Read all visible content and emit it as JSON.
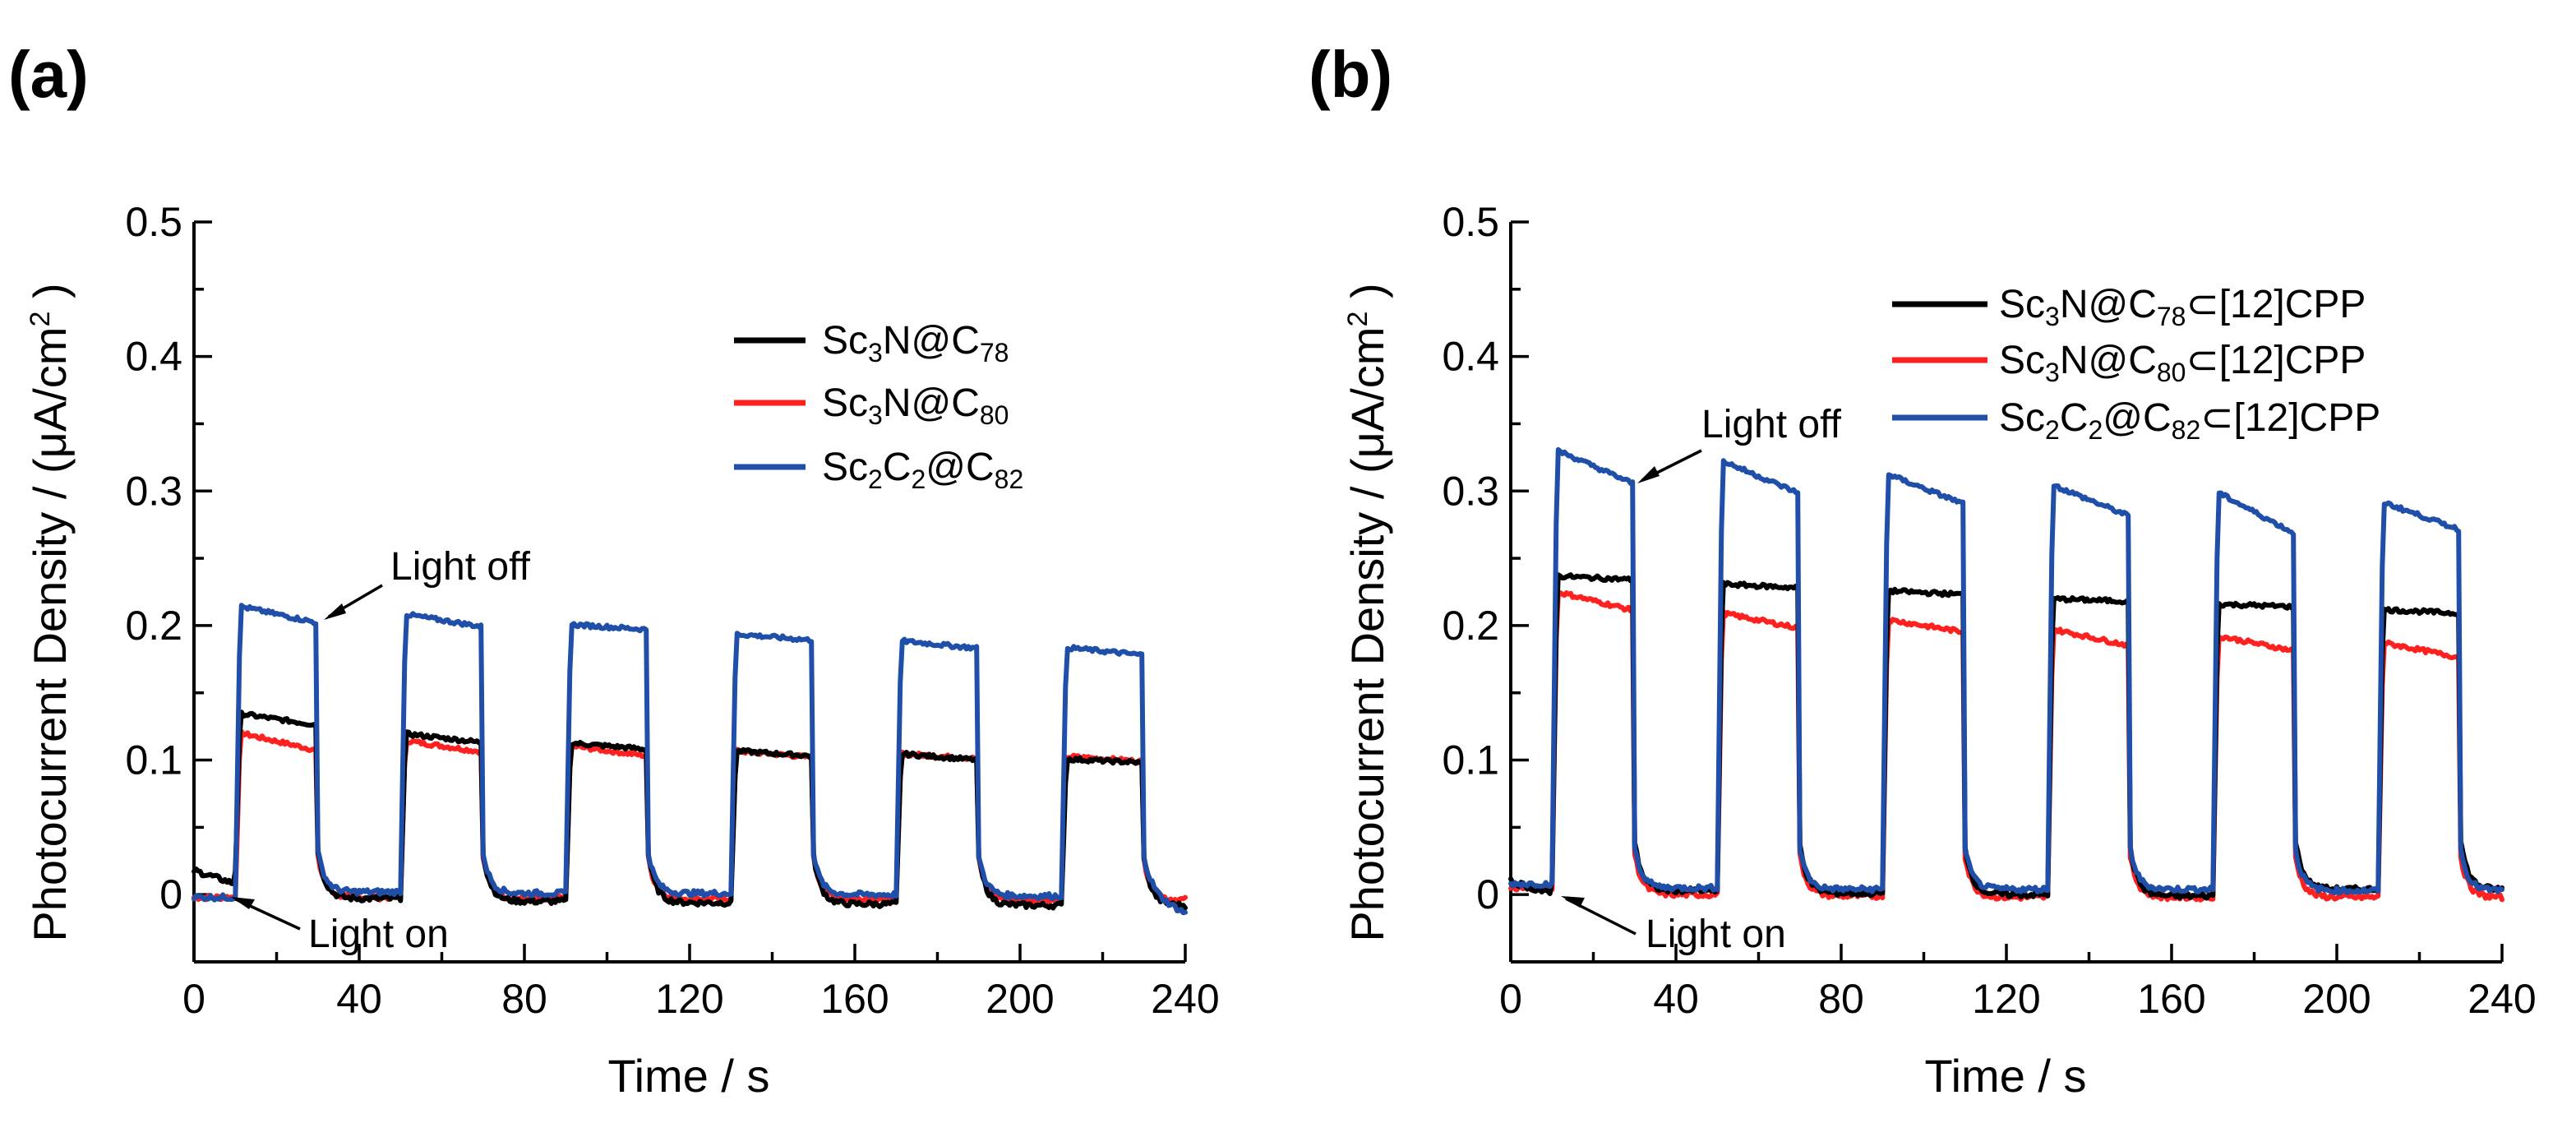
{
  "chart_data": [
    {
      "panel": "(a)",
      "type": "line",
      "title": "",
      "xlabel": "Time / s",
      "ylabel": "Photocurrent Density / (μA/cm²)",
      "xlim": [
        0,
        240
      ],
      "ylim": [
        -0.05,
        0.5
      ],
      "xticks": [
        "0",
        "40",
        "80",
        "120",
        "160",
        "200",
        "240"
      ],
      "yticks": [
        "0",
        "0.1",
        "0.2",
        "0.3",
        "0.4",
        "0.5"
      ],
      "light_on_intervals": [
        [
          10,
          30
        ],
        [
          50,
          70
        ],
        [
          90,
          110
        ],
        [
          130,
          150
        ],
        [
          170,
          190
        ],
        [
          210,
          230
        ]
      ],
      "legend_position": "top-right",
      "series": [
        {
          "name": "Sc₃N@C₇₈",
          "color": "#000000",
          "on_start": [
            0.135,
            0.12,
            0.113,
            0.107,
            0.105,
            0.101
          ],
          "on_end": [
            0.126,
            0.113,
            0.108,
            0.103,
            0.1,
            0.098
          ],
          "off_baseline": [
            0.018,
            -0.003,
            -0.005,
            -0.006,
            -0.007,
            -0.008
          ]
        },
        {
          "name": "Sc₃N@C₈₀",
          "color": "#ff2020",
          "on_start": [
            0.121,
            0.115,
            0.111,
            0.107,
            0.105,
            0.103
          ],
          "on_end": [
            0.107,
            0.106,
            0.103,
            0.102,
            0.101,
            0.099
          ],
          "off_baseline": [
            -0.002,
            -0.002,
            -0.003,
            -0.003,
            -0.003,
            -0.004
          ]
        },
        {
          "name": "Sc₂C₂@C₈₂",
          "color": "#1f4fa8",
          "on_start": [
            0.215,
            0.209,
            0.201,
            0.194,
            0.189,
            0.184
          ],
          "on_end": [
            0.202,
            0.199,
            0.197,
            0.189,
            0.183,
            0.178
          ],
          "off_baseline": [
            -0.002,
            0.002,
            0.001,
            0.001,
            0.0,
            -0.001
          ]
        }
      ],
      "annotations": [
        {
          "text": "Light off",
          "point": [
            31,
            0.202
          ]
        },
        {
          "text": "Light on",
          "point": [
            10,
            -0.002
          ]
        }
      ]
    },
    {
      "panel": "(b)",
      "type": "line",
      "title": "",
      "xlabel": "Time / s",
      "ylabel": "Photocurrent Density / (μA/cm²)",
      "xlim": [
        0,
        240
      ],
      "ylim": [
        -0.05,
        0.5
      ],
      "xticks": [
        "0",
        "40",
        "80",
        "120",
        "160",
        "200",
        "240"
      ],
      "yticks": [
        "0",
        "0.1",
        "0.2",
        "0.3",
        "0.4",
        "0.5"
      ],
      "light_on_intervals": [
        [
          10,
          30
        ],
        [
          50,
          70
        ],
        [
          90,
          110
        ],
        [
          130,
          150
        ],
        [
          170,
          190
        ],
        [
          210,
          230
        ]
      ],
      "legend_position": "top-right",
      "series": [
        {
          "name": "Sc₃N@C₇₈⊂[12]CPP",
          "color": "#000000",
          "on_start": [
            0.237,
            0.231,
            0.226,
            0.22,
            0.216,
            0.212
          ],
          "on_end": [
            0.234,
            0.228,
            0.223,
            0.218,
            0.214,
            0.209
          ],
          "off_baseline": [
            0.01,
            0.003,
            0.001,
            0.0,
            -0.001,
            0.004
          ]
        },
        {
          "name": "Sc₃N@C₈₀⊂[12]CPP",
          "color": "#ff2020",
          "on_start": [
            0.226,
            0.21,
            0.205,
            0.198,
            0.193,
            0.188
          ],
          "on_end": [
            0.211,
            0.198,
            0.195,
            0.185,
            0.181,
            0.176
          ],
          "off_baseline": [
            0.005,
            0.0,
            -0.001,
            -0.002,
            -0.002,
            -0.002
          ]
        },
        {
          "name": "Sc₂C₂@C₈₂⊂[12]CPP",
          "color": "#1f4fa8",
          "on_start": [
            0.332,
            0.324,
            0.314,
            0.306,
            0.301,
            0.293
          ],
          "on_end": [
            0.305,
            0.298,
            0.29,
            0.281,
            0.268,
            0.271
          ],
          "off_baseline": [
            0.008,
            0.005,
            0.004,
            0.004,
            0.004,
            0.003
          ]
        }
      ],
      "annotations": [
        {
          "text": "Light off",
          "point": [
            31,
            0.305
          ]
        },
        {
          "text": "Light on",
          "point": [
            13,
            0.002
          ]
        }
      ]
    }
  ]
}
